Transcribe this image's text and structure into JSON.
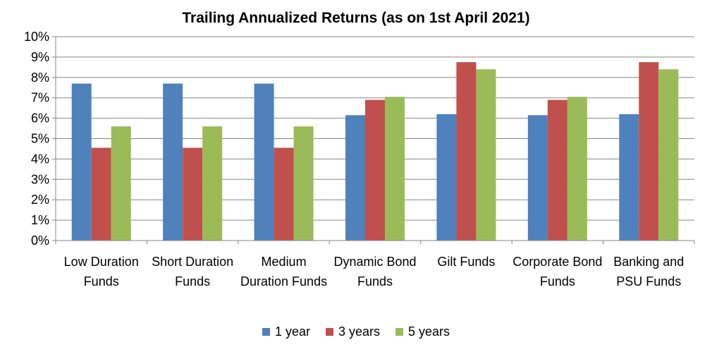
{
  "chart_data": {
    "type": "bar",
    "title": "Trailing Annualized Returns (as on 1st April 2021)",
    "xlabel": "",
    "ylabel": "",
    "ylim": [
      0,
      10
    ],
    "y_tick_labels": [
      "0%",
      "1%",
      "2%",
      "3%",
      "4%",
      "5%",
      "6%",
      "7%",
      "8%",
      "9%",
      "10%"
    ],
    "y_unit": "%",
    "grid": true,
    "legend_position": "bottom",
    "categories": [
      "Low Duration Funds",
      "Short Duration Funds",
      "Medium Duration Funds",
      "Dynamic Bond Funds",
      "Gilt Funds",
      "Corporate Bond Funds",
      "Banking and PSU Funds"
    ],
    "series": [
      {
        "name": "1 year",
        "color": "#4F81BD",
        "values": [
          7.7,
          7.7,
          7.7,
          6.15,
          6.2,
          6.15,
          6.2
        ]
      },
      {
        "name": "3 years",
        "color": "#C0504D",
        "values": [
          4.55,
          4.55,
          4.55,
          6.9,
          8.75,
          6.9,
          8.75
        ]
      },
      {
        "name": "5 years",
        "color": "#9BBB59",
        "values": [
          5.6,
          5.6,
          5.6,
          7.05,
          8.4,
          7.05,
          8.4
        ]
      }
    ]
  }
}
